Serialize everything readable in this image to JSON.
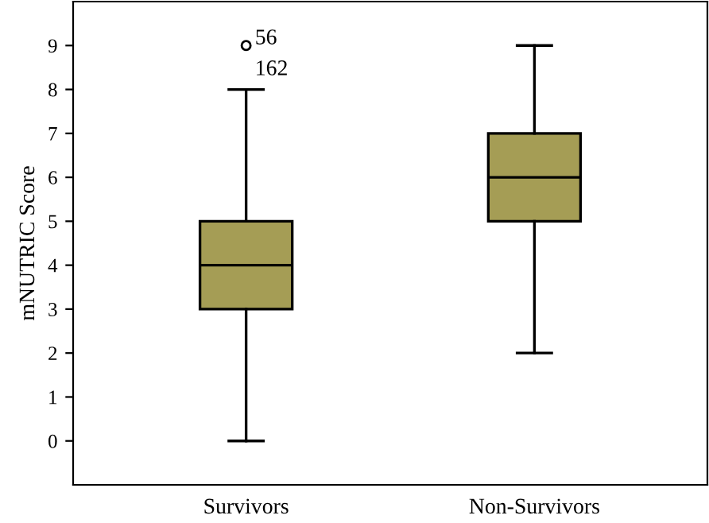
{
  "chart_data": {
    "type": "box",
    "ylabel": "mNUTRIC Score",
    "categories": [
      "Survivors",
      "Non-Survivors"
    ],
    "color": "#a59d55",
    "boxes": [
      {
        "low": 0,
        "q1": 3,
        "median": 4,
        "q3": 5,
        "high": 8,
        "outliers": [
          9
        ]
      },
      {
        "low": 2,
        "q1": 5,
        "median": 6,
        "q3": 7,
        "high": 9
      }
    ],
    "ylim": [
      -1,
      10
    ],
    "yticks": [
      0,
      1,
      2,
      3,
      4,
      5,
      6,
      7,
      8,
      9
    ],
    "grid": false,
    "legend": false,
    "annotations": [
      "56",
      "162"
    ]
  }
}
